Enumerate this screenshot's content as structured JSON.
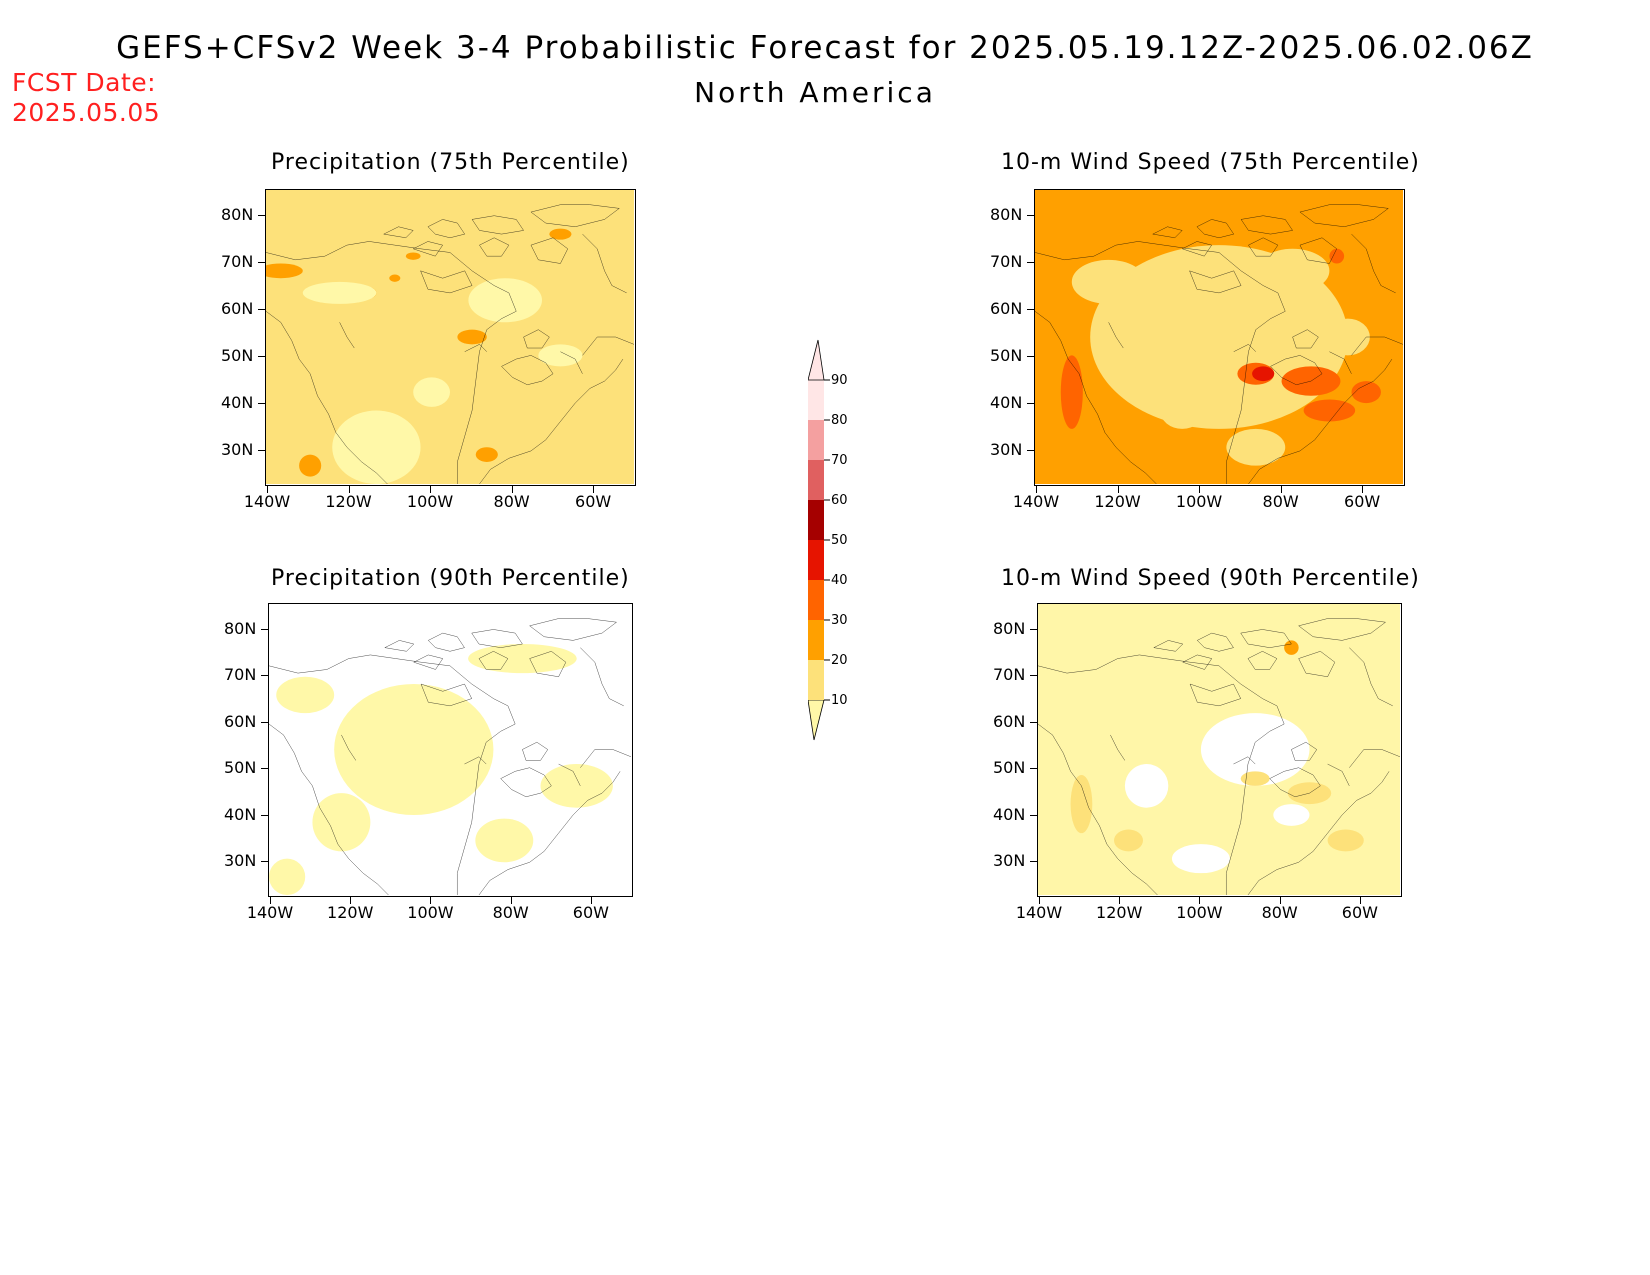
{
  "header": {
    "title": "GEFS+CFSv2 Week 3-4 Probabilistic Forecast for 2025.05.19.12Z-2025.06.02.06Z",
    "region": "North America",
    "fcst_label": "FCST Date:",
    "fcst_date": "2025.05.05"
  },
  "axes": {
    "lat_labels": [
      "80N",
      "70N",
      "60N",
      "50N",
      "40N",
      "30N"
    ],
    "lon_labels": [
      "140W",
      "120W",
      "100W",
      "80W",
      "60W"
    ]
  },
  "panels": [
    {
      "id": "precip-75",
      "title": "Precipitation (75th Percentile)",
      "dominant": "#fde17a"
    },
    {
      "id": "wind-75",
      "title": "10-m Wind Speed (75th Percentile)",
      "dominant": "#ffa000"
    },
    {
      "id": "precip-90",
      "title": "Precipitation (90th Percentile)",
      "dominant": "#ffffff"
    },
    {
      "id": "wind-90",
      "title": "10-m Wind Speed (90th Percentile)",
      "dominant": "#fff6a8"
    }
  ],
  "colorbar": {
    "levels": [
      "10",
      "20",
      "30",
      "40",
      "50",
      "60",
      "70",
      "80",
      "90"
    ],
    "colors": [
      "#fff8a8",
      "#fde17a",
      "#ffa000",
      "#ff6400",
      "#e61400",
      "#a50000",
      "#e06060",
      "#f4a0a0",
      "#ffe6e6"
    ]
  }
}
